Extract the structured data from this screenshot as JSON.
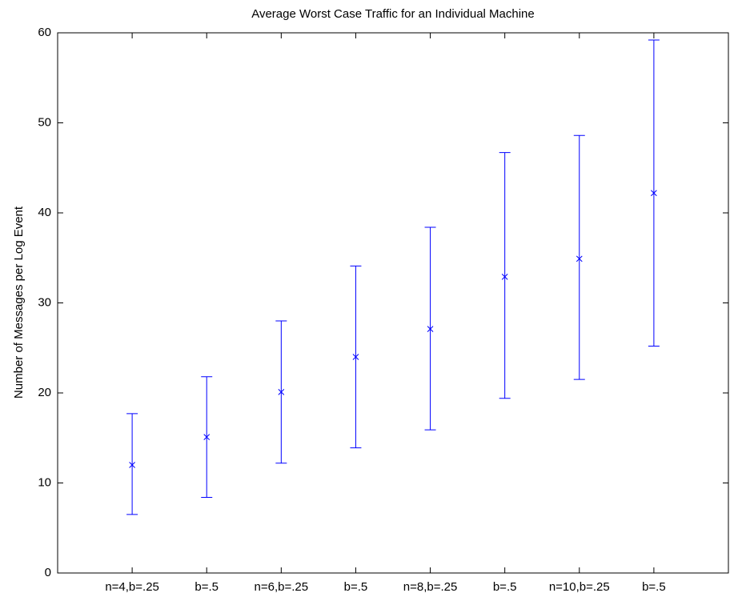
{
  "chart_data": {
    "type": "errorbar",
    "title": "Average Worst Case Traffic for an Individual Machine",
    "ylabel": "Number of Messages per Log Event",
    "categories": [
      "n=4,b=.25",
      "b=.5",
      "n=6,b=.25",
      "b=.5",
      "n=8,b=.25",
      "b=.5",
      "n=10,b=.25",
      "b=.5"
    ],
    "series": [
      {
        "color": "#0000ff",
        "values": [
          12,
          15.1,
          20.1,
          24,
          27.1,
          32.9,
          34.9,
          42.2
        ],
        "lower": [
          6.5,
          8.4,
          12.2,
          13.9,
          15.9,
          19.4,
          21.5,
          25.2
        ],
        "upper": [
          17.7,
          21.8,
          28,
          34.1,
          38.4,
          46.7,
          48.6,
          59.2
        ]
      }
    ],
    "ylim": [
      0,
      60
    ],
    "yticks": [
      0,
      10,
      20,
      30,
      40,
      50,
      60
    ]
  }
}
